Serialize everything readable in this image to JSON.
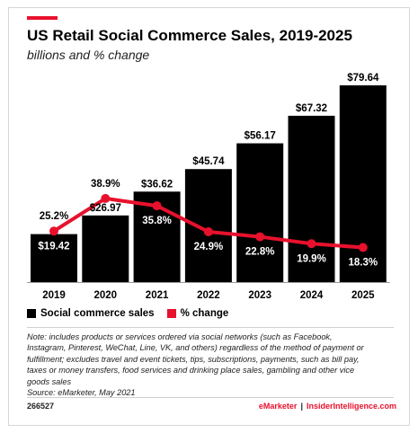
{
  "colors": {
    "accent": "#e8112d",
    "bar": "#000000",
    "text": "#000000"
  },
  "header": {
    "title": "US Retail Social Commerce Sales, 2019-2025",
    "subtitle": "billions and % change"
  },
  "chart_data": {
    "type": "bar",
    "title": "US Retail Social Commerce Sales, 2019-2025",
    "subtitle": "billions and % change",
    "categories": [
      "2019",
      "2020",
      "2021",
      "2022",
      "2023",
      "2024",
      "2025"
    ],
    "series": [
      {
        "name": "Social commerce sales",
        "type": "bar",
        "values": [
          19.42,
          26.97,
          36.62,
          45.74,
          56.17,
          67.32,
          79.64
        ],
        "labels": [
          "$19.42",
          "$26.97",
          "$36.62",
          "$45.74",
          "$56.17",
          "$67.32",
          "$79.64"
        ],
        "color": "#000000"
      },
      {
        "name": "% change",
        "type": "line",
        "values": [
          25.2,
          38.9,
          35.8,
          24.9,
          22.8,
          19.9,
          18.3
        ],
        "labels": [
          "25.2%",
          "38.9%",
          "35.8%",
          "24.9%",
          "22.8%",
          "19.9%",
          "18.3%"
        ],
        "color": "#e8112d"
      }
    ],
    "xlabel": "",
    "ylabel": "",
    "grid": false,
    "legend": "bottom-left"
  },
  "legend": {
    "items": [
      {
        "label": "Social commerce sales",
        "color": "#000000"
      },
      {
        "label": "% change",
        "color": "#e8112d"
      }
    ]
  },
  "note": {
    "lines": [
      "Note: includes products or services ordered via social networks (such as Facebook,",
      "Instagram, Pinterest, WeChat, Line, VK, and others) regardless of the method of payment or",
      "fulfillment; excludes travel and event tickets, tips, subscriptions, payments, such as bill pay,",
      "taxes or money transfers, food services and drinking place sales, gambling and other vice",
      "goods sales"
    ],
    "source": "Source: eMarketer, May 2021"
  },
  "footer": {
    "chart_id": "266527",
    "brand_left": "eMarketer",
    "separator": "|",
    "brand_right": "InsiderIntelligence.com"
  }
}
